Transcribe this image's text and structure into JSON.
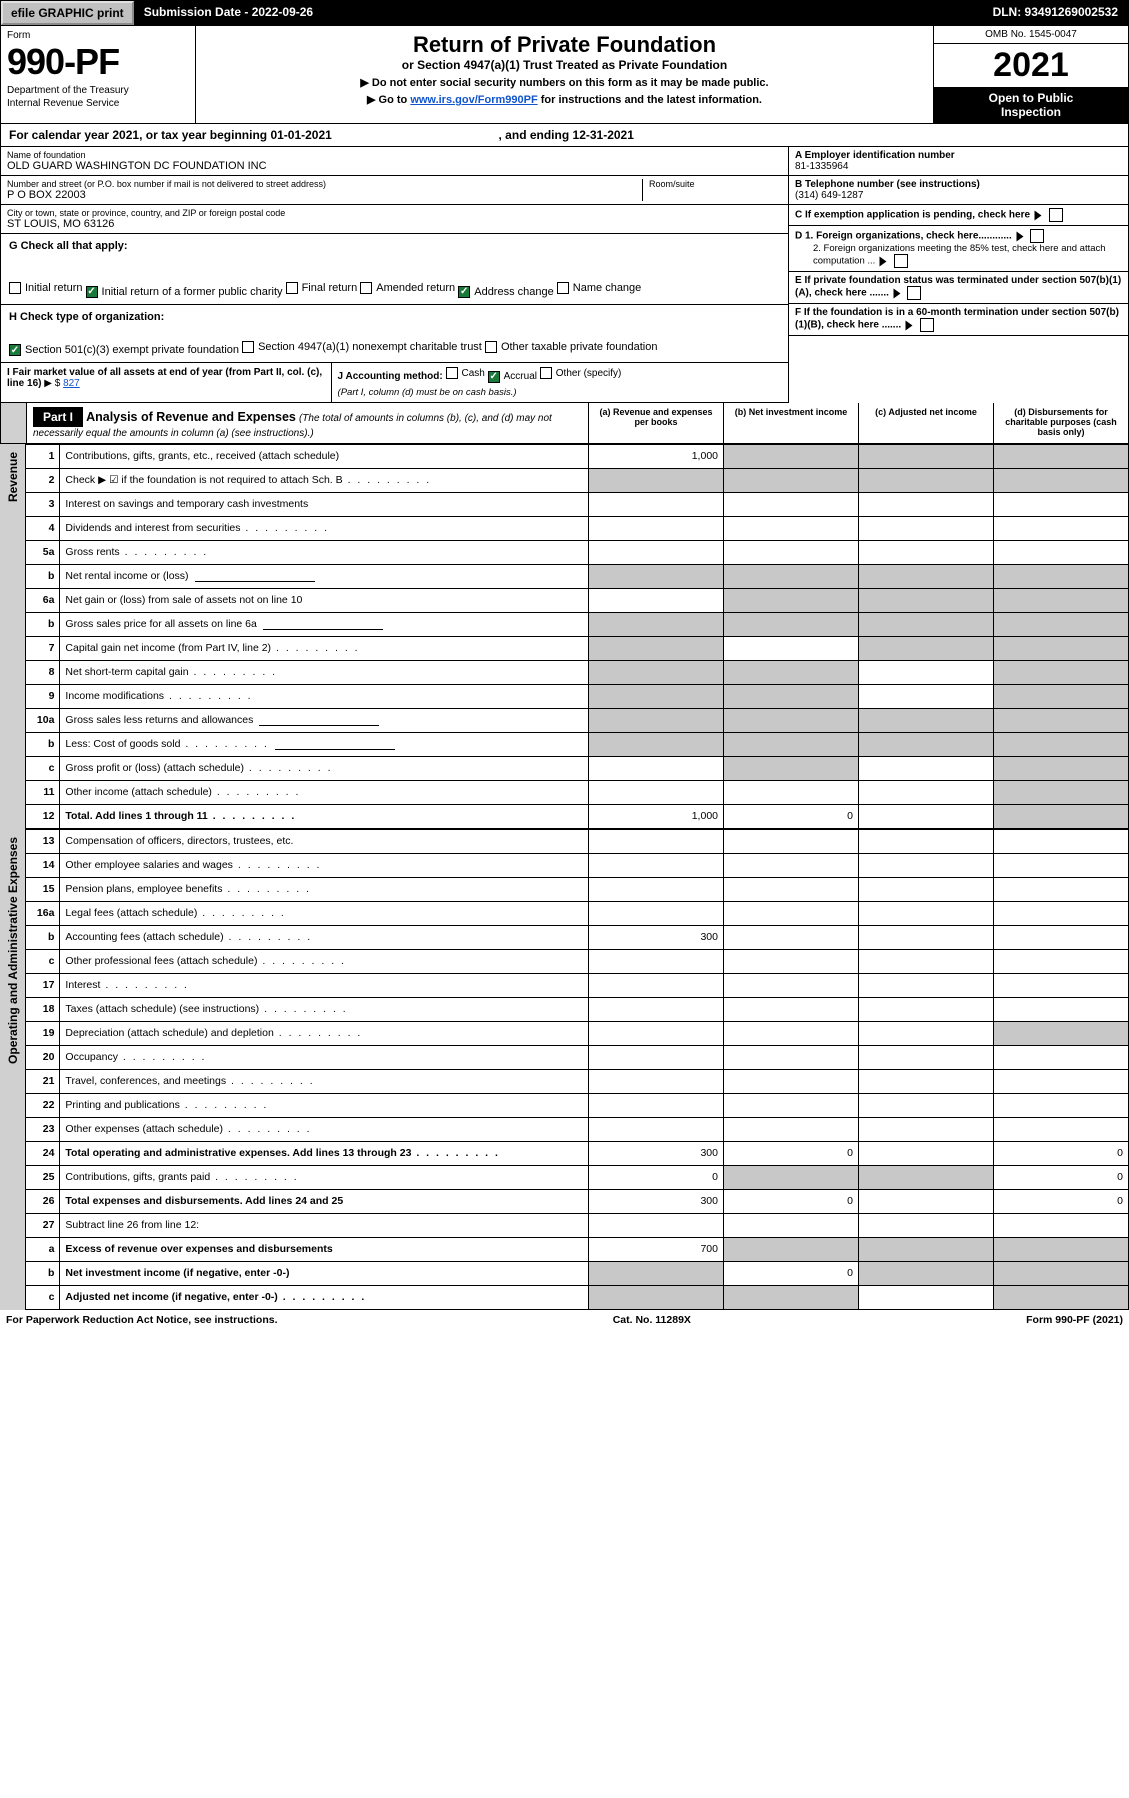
{
  "colors": {
    "black": "#000000",
    "grey_na": "#c8c8c8",
    "grey_btn": "#c0c0c0",
    "green": "#1a7a3a",
    "link": "#1155cc"
  },
  "topbar": {
    "efile": "efile GRAPHIC print",
    "submission_label": "Submission Date - 2022-09-26",
    "dln": "DLN: 93491269002532"
  },
  "header": {
    "form_word": "Form",
    "form_num": "990-PF",
    "dept1": "Department of the Treasury",
    "dept2": "Internal Revenue Service",
    "title": "Return of Private Foundation",
    "subtitle": "or Section 4947(a)(1) Trust Treated as Private Foundation",
    "note1": "▶ Do not enter social security numbers on this form as it may be made public.",
    "note2_pre": "▶ Go to ",
    "note2_link": "www.irs.gov/Form990PF",
    "note2_post": " for instructions and the latest information.",
    "omb": "OMB No. 1545-0047",
    "year": "2021",
    "open1": "Open to Public",
    "open2": "Inspection"
  },
  "cal": {
    "text": "For calendar year 2021, or tax year beginning 01-01-2021",
    "end": ", and ending 12-31-2021"
  },
  "entity": {
    "name_lab": "Name of foundation",
    "name": "OLD GUARD WASHINGTON DC FOUNDATION INC",
    "addr_lab": "Number and street (or P.O. box number if mail is not delivered to street address)",
    "addr": "P O BOX 22003",
    "room_lab": "Room/suite",
    "city_lab": "City or town, state or province, country, and ZIP or foreign postal code",
    "city": "ST LOUIS, MO  63126",
    "ein_lab": "A Employer identification number",
    "ein": "81-1335964",
    "tel_lab": "B Telephone number (see instructions)",
    "tel": "(314) 649-1287",
    "C": "C  If exemption application is pending, check here",
    "D1": "D 1. Foreign organizations, check here............",
    "D2": "2. Foreign organizations meeting the 85% test, check here and attach computation ...",
    "E": "E  If private foundation status was terminated under section 507(b)(1)(A), check here .......",
    "F": "F  If the foundation is in a 60-month termination under section 507(b)(1)(B), check here .......",
    "G": "G Check all that apply:",
    "g_items": [
      "Initial return",
      "Initial return of a former public charity",
      "Final return",
      "Amended return",
      "Address change",
      "Name change"
    ],
    "g_checked": [
      false,
      true,
      false,
      false,
      true,
      false
    ],
    "H": "H Check type of organization:",
    "h_items": [
      "Section 501(c)(3) exempt private foundation",
      "Section 4947(a)(1) nonexempt charitable trust",
      "Other taxable private foundation"
    ],
    "h_checked": [
      true,
      false,
      false
    ],
    "I_lab": "I Fair market value of all assets at end of year (from Part II, col. (c), line 16)",
    "I_val": "827",
    "I_prefix": "▶ $",
    "J_lab": "J Accounting method:",
    "J_items": [
      "Cash",
      "Accrual",
      "Other (specify)"
    ],
    "J_checked": [
      false,
      true,
      false
    ],
    "J_note": "(Part I, column (d) must be on cash basis.)"
  },
  "part1": {
    "label": "Part I",
    "title": "Analysis of Revenue and Expenses",
    "note": " (The total of amounts in columns (b), (c), and (d) may not necessarily equal the amounts in column (a) (see instructions).)",
    "cols": [
      "(a) Revenue and expenses per books",
      "(b) Net investment income",
      "(c) Adjusted net income",
      "(d) Disbursements for charitable purposes (cash basis only)"
    ]
  },
  "sections": {
    "revenue": "Revenue",
    "opex": "Operating and Administrative Expenses"
  },
  "rows": [
    {
      "n": "1",
      "t": "Contributions, gifts, grants, etc., received (attach schedule)",
      "a": "1,000",
      "na": [
        "b",
        "c",
        "d"
      ]
    },
    {
      "n": "2",
      "t": "Check ▶ ☑ if the foundation is not required to attach Sch. B",
      "dots": true,
      "blankRight": true
    },
    {
      "n": "3",
      "t": "Interest on savings and temporary cash investments"
    },
    {
      "n": "4",
      "t": "Dividends and interest from securities",
      "dots": true
    },
    {
      "n": "5a",
      "t": "Gross rents",
      "dots": true
    },
    {
      "n": "b",
      "t": "Net rental income or (loss)",
      "short": true,
      "blankRight": true
    },
    {
      "n": "6a",
      "t": "Net gain or (loss) from sale of assets not on line 10",
      "na": [
        "b",
        "c",
        "d"
      ]
    },
    {
      "n": "b",
      "t": "Gross sales price for all assets on line 6a",
      "short": true,
      "blankRight": true
    },
    {
      "n": "7",
      "t": "Capital gain net income (from Part IV, line 2)",
      "dots": true,
      "na": [
        "a",
        "c",
        "d"
      ]
    },
    {
      "n": "8",
      "t": "Net short-term capital gain",
      "dots": true,
      "na": [
        "a",
        "b",
        "d"
      ]
    },
    {
      "n": "9",
      "t": "Income modifications",
      "dots": true,
      "na": [
        "a",
        "b",
        "d"
      ]
    },
    {
      "n": "10a",
      "t": "Gross sales less returns and allowances",
      "short": true,
      "blankRight": true
    },
    {
      "n": "b",
      "t": "Less: Cost of goods sold",
      "dots": true,
      "short": true,
      "blankRight": true
    },
    {
      "n": "c",
      "t": "Gross profit or (loss) (attach schedule)",
      "dots": true,
      "na": [
        "b",
        "d"
      ]
    },
    {
      "n": "11",
      "t": "Other income (attach schedule)",
      "dots": true,
      "na": [
        "d"
      ]
    },
    {
      "n": "12",
      "t": "Total. Add lines 1 through 11",
      "dots": true,
      "bold": true,
      "a": "1,000",
      "b": "0",
      "na": [
        "d"
      ]
    }
  ],
  "rows2": [
    {
      "n": "13",
      "t": "Compensation of officers, directors, trustees, etc."
    },
    {
      "n": "14",
      "t": "Other employee salaries and wages",
      "dots": true
    },
    {
      "n": "15",
      "t": "Pension plans, employee benefits",
      "dots": true
    },
    {
      "n": "16a",
      "t": "Legal fees (attach schedule)",
      "dots": true
    },
    {
      "n": "b",
      "t": "Accounting fees (attach schedule)",
      "dots": true,
      "a": "300"
    },
    {
      "n": "c",
      "t": "Other professional fees (attach schedule)",
      "dots": true
    },
    {
      "n": "17",
      "t": "Interest",
      "dots": true
    },
    {
      "n": "18",
      "t": "Taxes (attach schedule) (see instructions)",
      "dots": true
    },
    {
      "n": "19",
      "t": "Depreciation (attach schedule) and depletion",
      "dots": true,
      "na": [
        "d"
      ]
    },
    {
      "n": "20",
      "t": "Occupancy",
      "dots": true
    },
    {
      "n": "21",
      "t": "Travel, conferences, and meetings",
      "dots": true
    },
    {
      "n": "22",
      "t": "Printing and publications",
      "dots": true
    },
    {
      "n": "23",
      "t": "Other expenses (attach schedule)",
      "dots": true
    },
    {
      "n": "24",
      "t": "Total operating and administrative expenses. Add lines 13 through 23",
      "dots": true,
      "bold": true,
      "a": "300",
      "b": "0",
      "d": "0"
    },
    {
      "n": "25",
      "t": "Contributions, gifts, grants paid",
      "dots": true,
      "a": "0",
      "d": "0",
      "na": [
        "b",
        "c"
      ]
    },
    {
      "n": "26",
      "t": "Total expenses and disbursements. Add lines 24 and 25",
      "bold": true,
      "a": "300",
      "b": "0",
      "d": "0"
    },
    {
      "n": "27",
      "t": "Subtract line 26 from line 12:"
    },
    {
      "n": "a",
      "t": "Excess of revenue over expenses and disbursements",
      "bold": true,
      "a": "700",
      "na": [
        "b",
        "c",
        "d"
      ]
    },
    {
      "n": "b",
      "t": "Net investment income (if negative, enter -0-)",
      "bold": true,
      "b": "0",
      "na": [
        "a",
        "c",
        "d"
      ]
    },
    {
      "n": "c",
      "t": "Adjusted net income (if negative, enter -0-)",
      "bold": true,
      "dots": true,
      "na": [
        "a",
        "b",
        "d"
      ]
    }
  ],
  "footer": {
    "left": "For Paperwork Reduction Act Notice, see instructions.",
    "mid": "Cat. No. 11289X",
    "right": "Form 990-PF (2021)"
  }
}
